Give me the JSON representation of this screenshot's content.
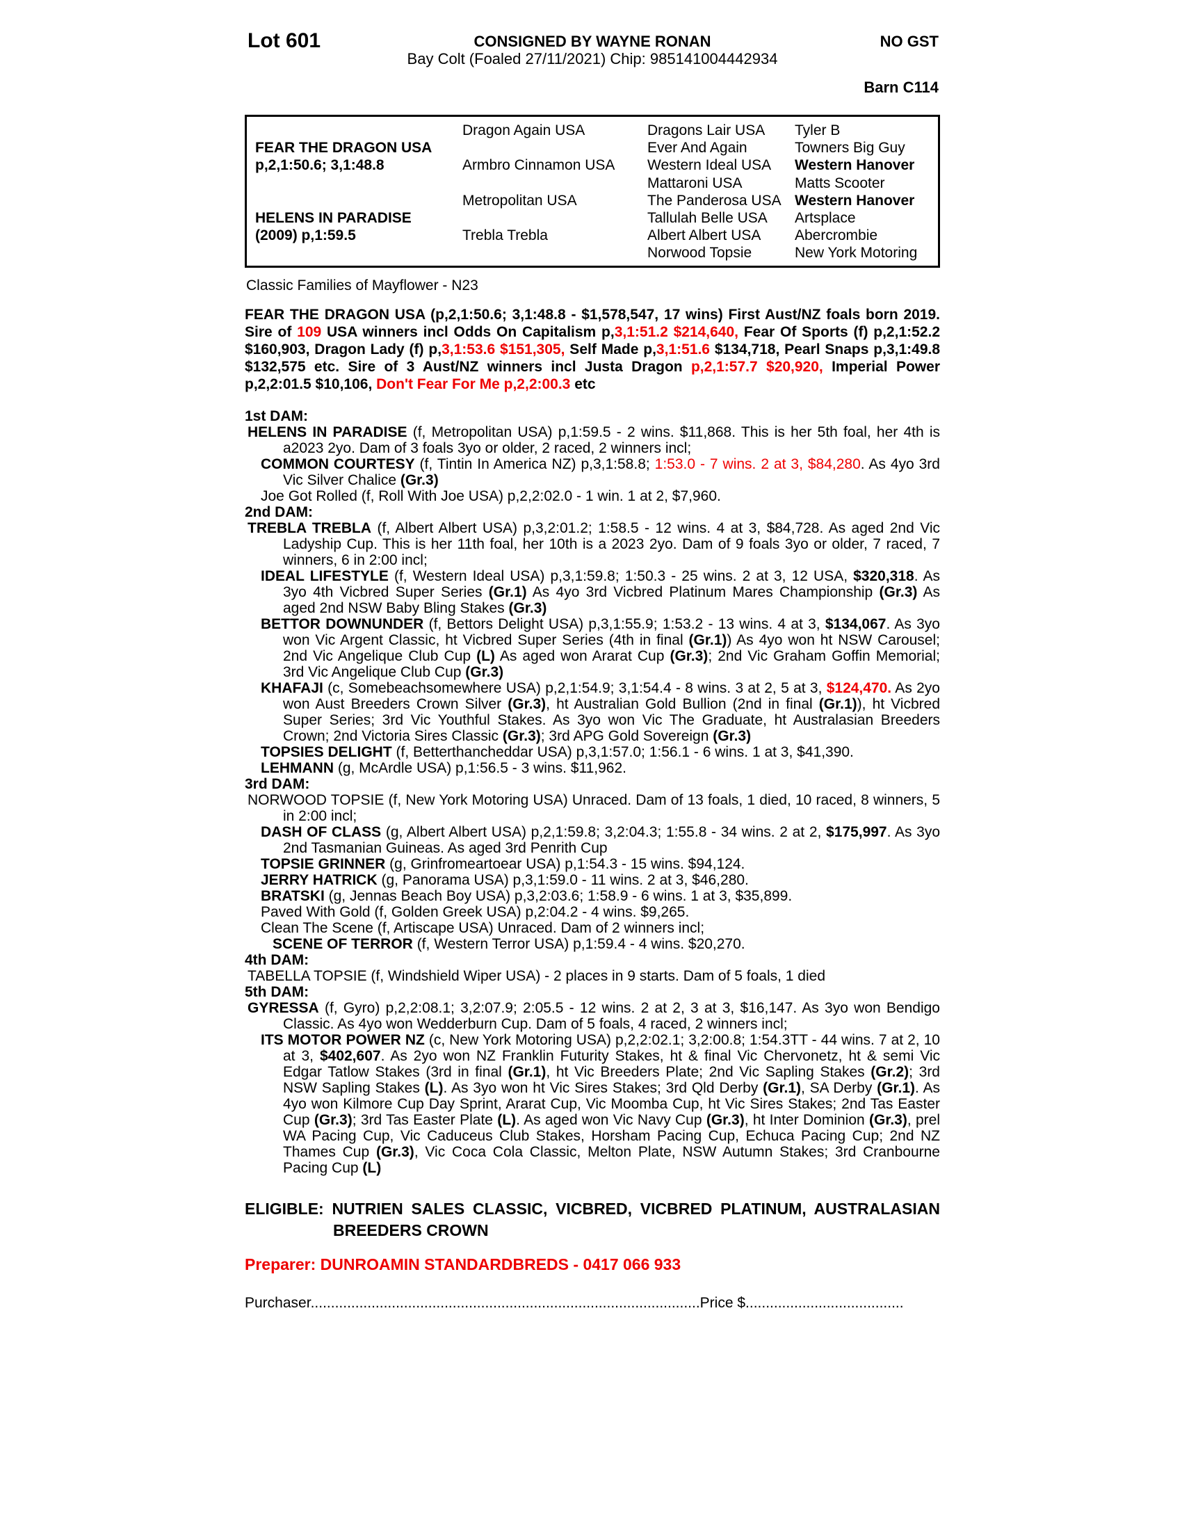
{
  "colors": {
    "accent_red": "#ee0000"
  },
  "header": {
    "lot": "Lot 601",
    "consigned": "CONSIGNED BY WAYNE RONAN",
    "no_gst": "NO GST",
    "description": "Bay Colt (Foaled 27/11/2021) Chip: 985141004442934",
    "barn": "Barn C114"
  },
  "table": {
    "sire": {
      "name": "FEAR THE DRAGON USA",
      "record": "p,2,1:50.6; 3,1:48.8"
    },
    "dam": {
      "name": "HELENS IN PARADISE",
      "record": "(2009) p,1:59.5"
    },
    "gen2": [
      "Dragon Again USA",
      "Armbro Cinnamon USA",
      "Metropolitan USA",
      "Trebla Trebla"
    ],
    "gen3": [
      "Dragons Lair USA",
      "Ever And Again",
      "Western Ideal USA",
      "Mattaroni USA",
      "The Panderosa USA",
      "Tallulah Belle USA",
      "Albert Albert USA",
      "Norwood Topsie"
    ],
    "gen4": [
      "Tyler B",
      "Towners Big Guy",
      "Western Hanover",
      "Matts Scooter",
      "Western Hanover",
      "Artsplace",
      "Abercrombie",
      "New York Motoring"
    ]
  },
  "classic_families": "Classic Families of Mayflower - N23",
  "sire_para": [
    {
      "t": "FEAR THE DRAGON USA (p,2,1:50.6; 3,1:48.8 - $1,578,547, 17 wins) First Aust/NZ foals born 2019. Sire of ",
      "s": "b"
    },
    {
      "t": "109",
      "s": "br"
    },
    {
      "t": " USA winners incl Odds On Capitalism p,",
      "s": "b"
    },
    {
      "t": "3,1:51.2 $214,640,",
      "s": "br"
    },
    {
      "t": " Fear Of Sports (f) p,2,1:52.2 $160,903, Dragon Lady (f) p,",
      "s": "b"
    },
    {
      "t": "3,1:53.6 $151,305,",
      "s": "br"
    },
    {
      "t": " Self Made p,",
      "s": "b"
    },
    {
      "t": "3,1:51.6",
      "s": "br"
    },
    {
      "t": " $134,718, Pearl Snaps p,3,1:49.8 $132,575 etc. Sire of 3 Aust/NZ winners incl Justa Dragon ",
      "s": "b"
    },
    {
      "t": "p,2,1:57.7 $20,920,",
      "s": "br"
    },
    {
      "t": " Imperial Power p,2,2:01.5 $10,106, ",
      "s": "b"
    },
    {
      "t": "Don't Fear For Me p,2,2:00.3",
      "s": "br"
    },
    {
      "t": " etc",
      "s": "b"
    }
  ],
  "pedigree": [
    {
      "kind": "heading",
      "text": "1st DAM:"
    },
    {
      "kind": "para",
      "segments": [
        {
          "t": "HELENS IN PARADISE",
          "s": "b"
        },
        {
          "t": " (f, Metropolitan USA) p,1:59.5 - 2 wins. $11,868. This is her 5th foal, her 4th is a2023 2yo. Dam of 3 foals 3yo or older, 2 raced, 2 winners incl;"
        }
      ]
    },
    {
      "kind": "para",
      "segments": [
        {
          "t": "COMMON COURTESY",
          "s": "b"
        },
        {
          "t": " (f, Tintin In America NZ) p,3,1:58.8; "
        },
        {
          "t": "1:53.0 - 7 wins. 2 at 3, $84,280",
          "s": "r"
        },
        {
          "t": ". As 4yo 3rd Vic Silver Chalice "
        },
        {
          "t": "(Gr.3)",
          "s": "b"
        }
      ]
    },
    {
      "kind": "para",
      "segments": [
        {
          "t": "Joe Got Rolled (f, Roll With Joe USA) p,2,2:02.0 - 1 win. 1 at 2, $7,960."
        }
      ]
    },
    {
      "kind": "heading",
      "text": "2nd DAM:"
    },
    {
      "kind": "para",
      "segments": [
        {
          "t": "TREBLA TREBLA",
          "s": "b"
        },
        {
          "t": " (f, Albert Albert USA) p,3,2:01.2; 1:58.5 - 12 wins. 4 at 3, $84,728. As aged 2nd Vic Ladyship Cup. This is her 11th foal, her 10th is a 2023 2yo. Dam of 9 foals 3yo or older, 7 raced, 7 winners, 6 in 2:00 incl;"
        }
      ]
    },
    {
      "kind": "para",
      "segments": [
        {
          "t": "IDEAL LIFESTYLE",
          "s": "b"
        },
        {
          "t": " (f, Western Ideal USA) p,3,1:59.8; 1:50.3 - 25 wins. 2 at 3, 12 USA, "
        },
        {
          "t": "$320,318",
          "s": "b"
        },
        {
          "t": ". As 3yo 4th Vicbred Super Series "
        },
        {
          "t": "(Gr.1)",
          "s": "b"
        },
        {
          "t": " As 4yo 3rd Vicbred Platinum Mares Championship "
        },
        {
          "t": "(Gr.3)",
          "s": "b"
        },
        {
          "t": " As aged 2nd NSW Baby Bling Stakes "
        },
        {
          "t": "(Gr.3)",
          "s": "b"
        }
      ]
    },
    {
      "kind": "para",
      "segments": [
        {
          "t": "BETTOR DOWNUNDER",
          "s": "b"
        },
        {
          "t": " (f, Bettors Delight USA) p,3,1:55.9; 1:53.2 - 13 wins. 4 at 3, "
        },
        {
          "t": "$134,067",
          "s": "b"
        },
        {
          "t": ". As 3yo won Vic Argent Classic, ht Vicbred Super Series (4th in final "
        },
        {
          "t": "(Gr.1)",
          "s": "b"
        },
        {
          "t": ") As 4yo won ht NSW Carousel; 2nd Vic Angelique Club Cup "
        },
        {
          "t": "(L)",
          "s": "b"
        },
        {
          "t": " As aged won Ararat Cup "
        },
        {
          "t": "(Gr.3)",
          "s": "b"
        },
        {
          "t": "; 2nd Vic Graham Goffin Memorial; 3rd Vic Angelique Club Cup "
        },
        {
          "t": "(Gr.3)",
          "s": "b"
        }
      ]
    },
    {
      "kind": "para",
      "segments": [
        {
          "t": "KHAFAJI",
          "s": "b"
        },
        {
          "t": " (c, Somebeachsomewhere USA) p,2,1:54.9; 3,1:54.4 - 8 wins. 3 at 2, 5 at 3, "
        },
        {
          "t": "$124,470.",
          "s": "br"
        },
        {
          "t": " As 2yo won Aust Breeders Crown Silver "
        },
        {
          "t": "(Gr.3)",
          "s": "b"
        },
        {
          "t": ", ht Australian Gold Bullion (2nd in final "
        },
        {
          "t": "(Gr.1)",
          "s": "b"
        },
        {
          "t": "), ht Vicbred Super Series; 3rd Vic Youthful Stakes. As 3yo won Vic The Graduate, ht Australasian Breeders Crown; 2nd Victoria Sires Classic "
        },
        {
          "t": "(Gr.3)",
          "s": "b"
        },
        {
          "t": "; 3rd APG Gold Sovereign "
        },
        {
          "t": "(Gr.3)",
          "s": "b"
        }
      ]
    },
    {
      "kind": "para",
      "segments": [
        {
          "t": "TOPSIES DELIGHT",
          "s": "b"
        },
        {
          "t": " (f, Betterthancheddar USA) p,3,1:57.0; 1:56.1 - 6 wins. 1 at 3, $41,390."
        }
      ]
    },
    {
      "kind": "para",
      "segments": [
        {
          "t": "LEHMANN",
          "s": "b"
        },
        {
          "t": " (g, McArdle USA) p,1:56.5 - 3 wins. $11,962."
        }
      ]
    },
    {
      "kind": "heading",
      "text": "3rd DAM:"
    },
    {
      "kind": "para",
      "segments": [
        {
          "t": "NORWOOD TOPSIE (f, New York Motoring USA) Unraced. Dam of 13 foals, 1 died, 10 raced, 8 winners, 5 in 2:00 incl;"
        }
      ]
    },
    {
      "kind": "para",
      "segments": [
        {
          "t": "DASH OF CLASS",
          "s": "b"
        },
        {
          "t": " (g, Albert Albert USA) p,2,1:59.8; 3,2:04.3; 1:55.8 - 34 wins. 2 at 2, "
        },
        {
          "t": "$175,997",
          "s": "b"
        },
        {
          "t": ". As 3yo 2nd Tasmanian Guineas. As aged 3rd Penrith Cup"
        }
      ]
    },
    {
      "kind": "para",
      "segments": [
        {
          "t": "TOPSIE GRINNER",
          "s": "b"
        },
        {
          "t": " (g, Grinfromeartoear USA) p,1:54.3 - 15 wins. $94,124."
        }
      ]
    },
    {
      "kind": "para",
      "segments": [
        {
          "t": "JERRY HATRICK",
          "s": "b"
        },
        {
          "t": " (g, Panorama USA) p,3,1:59.0 - 11 wins. 2 at 3, $46,280."
        }
      ]
    },
    {
      "kind": "para",
      "segments": [
        {
          "t": "BRATSKI",
          "s": "b"
        },
        {
          "t": " (g, Jennas Beach Boy USA) p,3,2:03.6; 1:58.9 - 6 wins. 1 at 3, $35,899."
        }
      ]
    },
    {
      "kind": "para",
      "segments": [
        {
          "t": "Paved With Gold (f, Golden Greek USA) p,2:04.2 - 4 wins. $9,265."
        }
      ]
    },
    {
      "kind": "para",
      "segments": [
        {
          "t": "Clean The Scene (f, Artiscape USA) Unraced. Dam of 2 winners incl;"
        }
      ]
    },
    {
      "kind": "para",
      "segments": [
        {
          "t": "SCENE OF TERROR",
          "s": "b"
        },
        {
          "t": " (f, Western Terror USA) p,1:59.4 - 4 wins. $20,270."
        }
      ]
    },
    {
      "kind": "heading",
      "text": "4th DAM:"
    },
    {
      "kind": "para",
      "segments": [
        {
          "t": "TABELLA TOPSIE (f, Windshield Wiper USA) - 2 places in 9 starts. Dam of 5 foals, 1 died"
        }
      ]
    },
    {
      "kind": "heading",
      "text": "5th DAM:"
    },
    {
      "kind": "para",
      "segments": [
        {
          "t": "GYRESSA",
          "s": "b"
        },
        {
          "t": " (f, Gyro) p,2,2:08.1; 3,2:07.9; 2:05.5 - 12 wins. 2 at 2, 3 at 3, $16,147. As 3yo won Bendigo Classic. As 4yo won Wedderburn Cup. Dam of 5 foals, 4 raced, 2 winners incl;"
        }
      ]
    },
    {
      "kind": "para",
      "segments": [
        {
          "t": "ITS MOTOR POWER NZ",
          "s": "b"
        },
        {
          "t": " (c, New York Motoring USA) p,2,2:02.1; 3,2:00.8; 1:54.3TT - 44 wins. 7 at 2, 10 at 3, "
        },
        {
          "t": "$402,607",
          "s": "b"
        },
        {
          "t": ". As 2yo won NZ Franklin Futurity Stakes, ht & final Vic Chervonetz, ht & semi Vic Edgar Tatlow Stakes (3rd in final "
        },
        {
          "t": "(Gr.1)",
          "s": "b"
        },
        {
          "t": ", ht Vic Breeders Plate; 2nd Vic Sapling Stakes "
        },
        {
          "t": "(Gr.2)",
          "s": "b"
        },
        {
          "t": "; 3rd NSW Sapling Stakes "
        },
        {
          "t": "(L)",
          "s": "b"
        },
        {
          "t": ". As 3yo won ht Vic Sires Stakes; 3rd Qld Derby "
        },
        {
          "t": "(Gr.1)",
          "s": "b"
        },
        {
          "t": ", SA Derby "
        },
        {
          "t": "(Gr.1)",
          "s": "b"
        },
        {
          "t": ". As 4yo won Kilmore Cup Day Sprint, Ararat Cup, Vic Moomba Cup, ht Vic Sires Stakes; 2nd Tas Easter Cup "
        },
        {
          "t": "(Gr.3)",
          "s": "b"
        },
        {
          "t": "; 3rd Tas Easter Plate "
        },
        {
          "t": "(L)",
          "s": "b"
        },
        {
          "t": ". As aged won Vic Navy Cup "
        },
        {
          "t": "(Gr.3)",
          "s": "b"
        },
        {
          "t": ", ht Inter Dominion "
        },
        {
          "t": "(Gr.3)",
          "s": "b"
        },
        {
          "t": ", prel WA Pacing Cup, Vic Caduceus Club Stakes, Horsham Pacing Cup, Echuca Pacing Cup; 2nd NZ Thames Cup "
        },
        {
          "t": "(Gr.3)",
          "s": "b"
        },
        {
          "t": ", Vic Coca Cola Classic, Melton Plate, NSW Autumn Stakes; 3rd Cranbourne Pacing Cup "
        },
        {
          "t": "(L)",
          "s": "b"
        }
      ]
    }
  ],
  "eligible": "ELIGIBLE: NUTRIEN SALES CLASSIC, VICBRED, VICBRED PLATINUM, AUSTRALASIAN BREEDERS CROWN",
  "preparer": "Preparer: DUNROAMIN STANDARDBREDS - 0417 066 933",
  "purchaser": {
    "label": "Purchaser",
    "dots1": "................................................................................................",
    "price_label": "Price $",
    "dots2": "......................................."
  }
}
